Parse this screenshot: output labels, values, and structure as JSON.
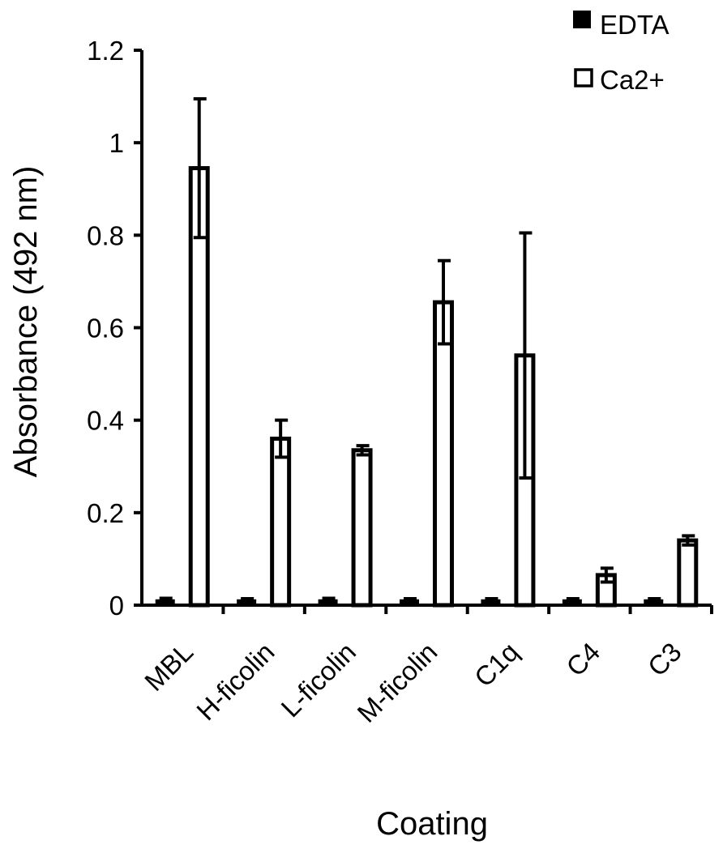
{
  "chart_data": {
    "type": "bar",
    "title": "",
    "xlabel": "Coating",
    "ylabel": "Absorbance (492 nm)",
    "ylim": [
      0,
      1.2
    ],
    "yticks": [
      0,
      0.2,
      0.4,
      0.6,
      0.8,
      1,
      1.2
    ],
    "ytick_labels": [
      "0",
      "0.2",
      "0.4",
      "0.6",
      "0.8",
      "1",
      "1.2"
    ],
    "categories": [
      "MBL",
      "H-ficolin",
      "L-ficolin",
      "M-ficolin",
      "C1q",
      "C4",
      "C3"
    ],
    "series": [
      {
        "name": "EDTA",
        "fill": "#000000",
        "values": [
          0.01,
          0.01,
          0.01,
          0.01,
          0.01,
          0.01,
          0.01
        ],
        "errors": [
          0.005,
          0.004,
          0.005,
          0.004,
          0.004,
          0.004,
          0.004
        ]
      },
      {
        "name": "Ca2+",
        "fill": "#ffffff",
        "values": [
          0.945,
          0.36,
          0.335,
          0.655,
          0.54,
          0.065,
          0.14
        ],
        "errors": [
          0.15,
          0.04,
          0.01,
          0.09,
          0.265,
          0.015,
          0.01
        ]
      }
    ],
    "legend_position": "top-right",
    "grid": false
  }
}
